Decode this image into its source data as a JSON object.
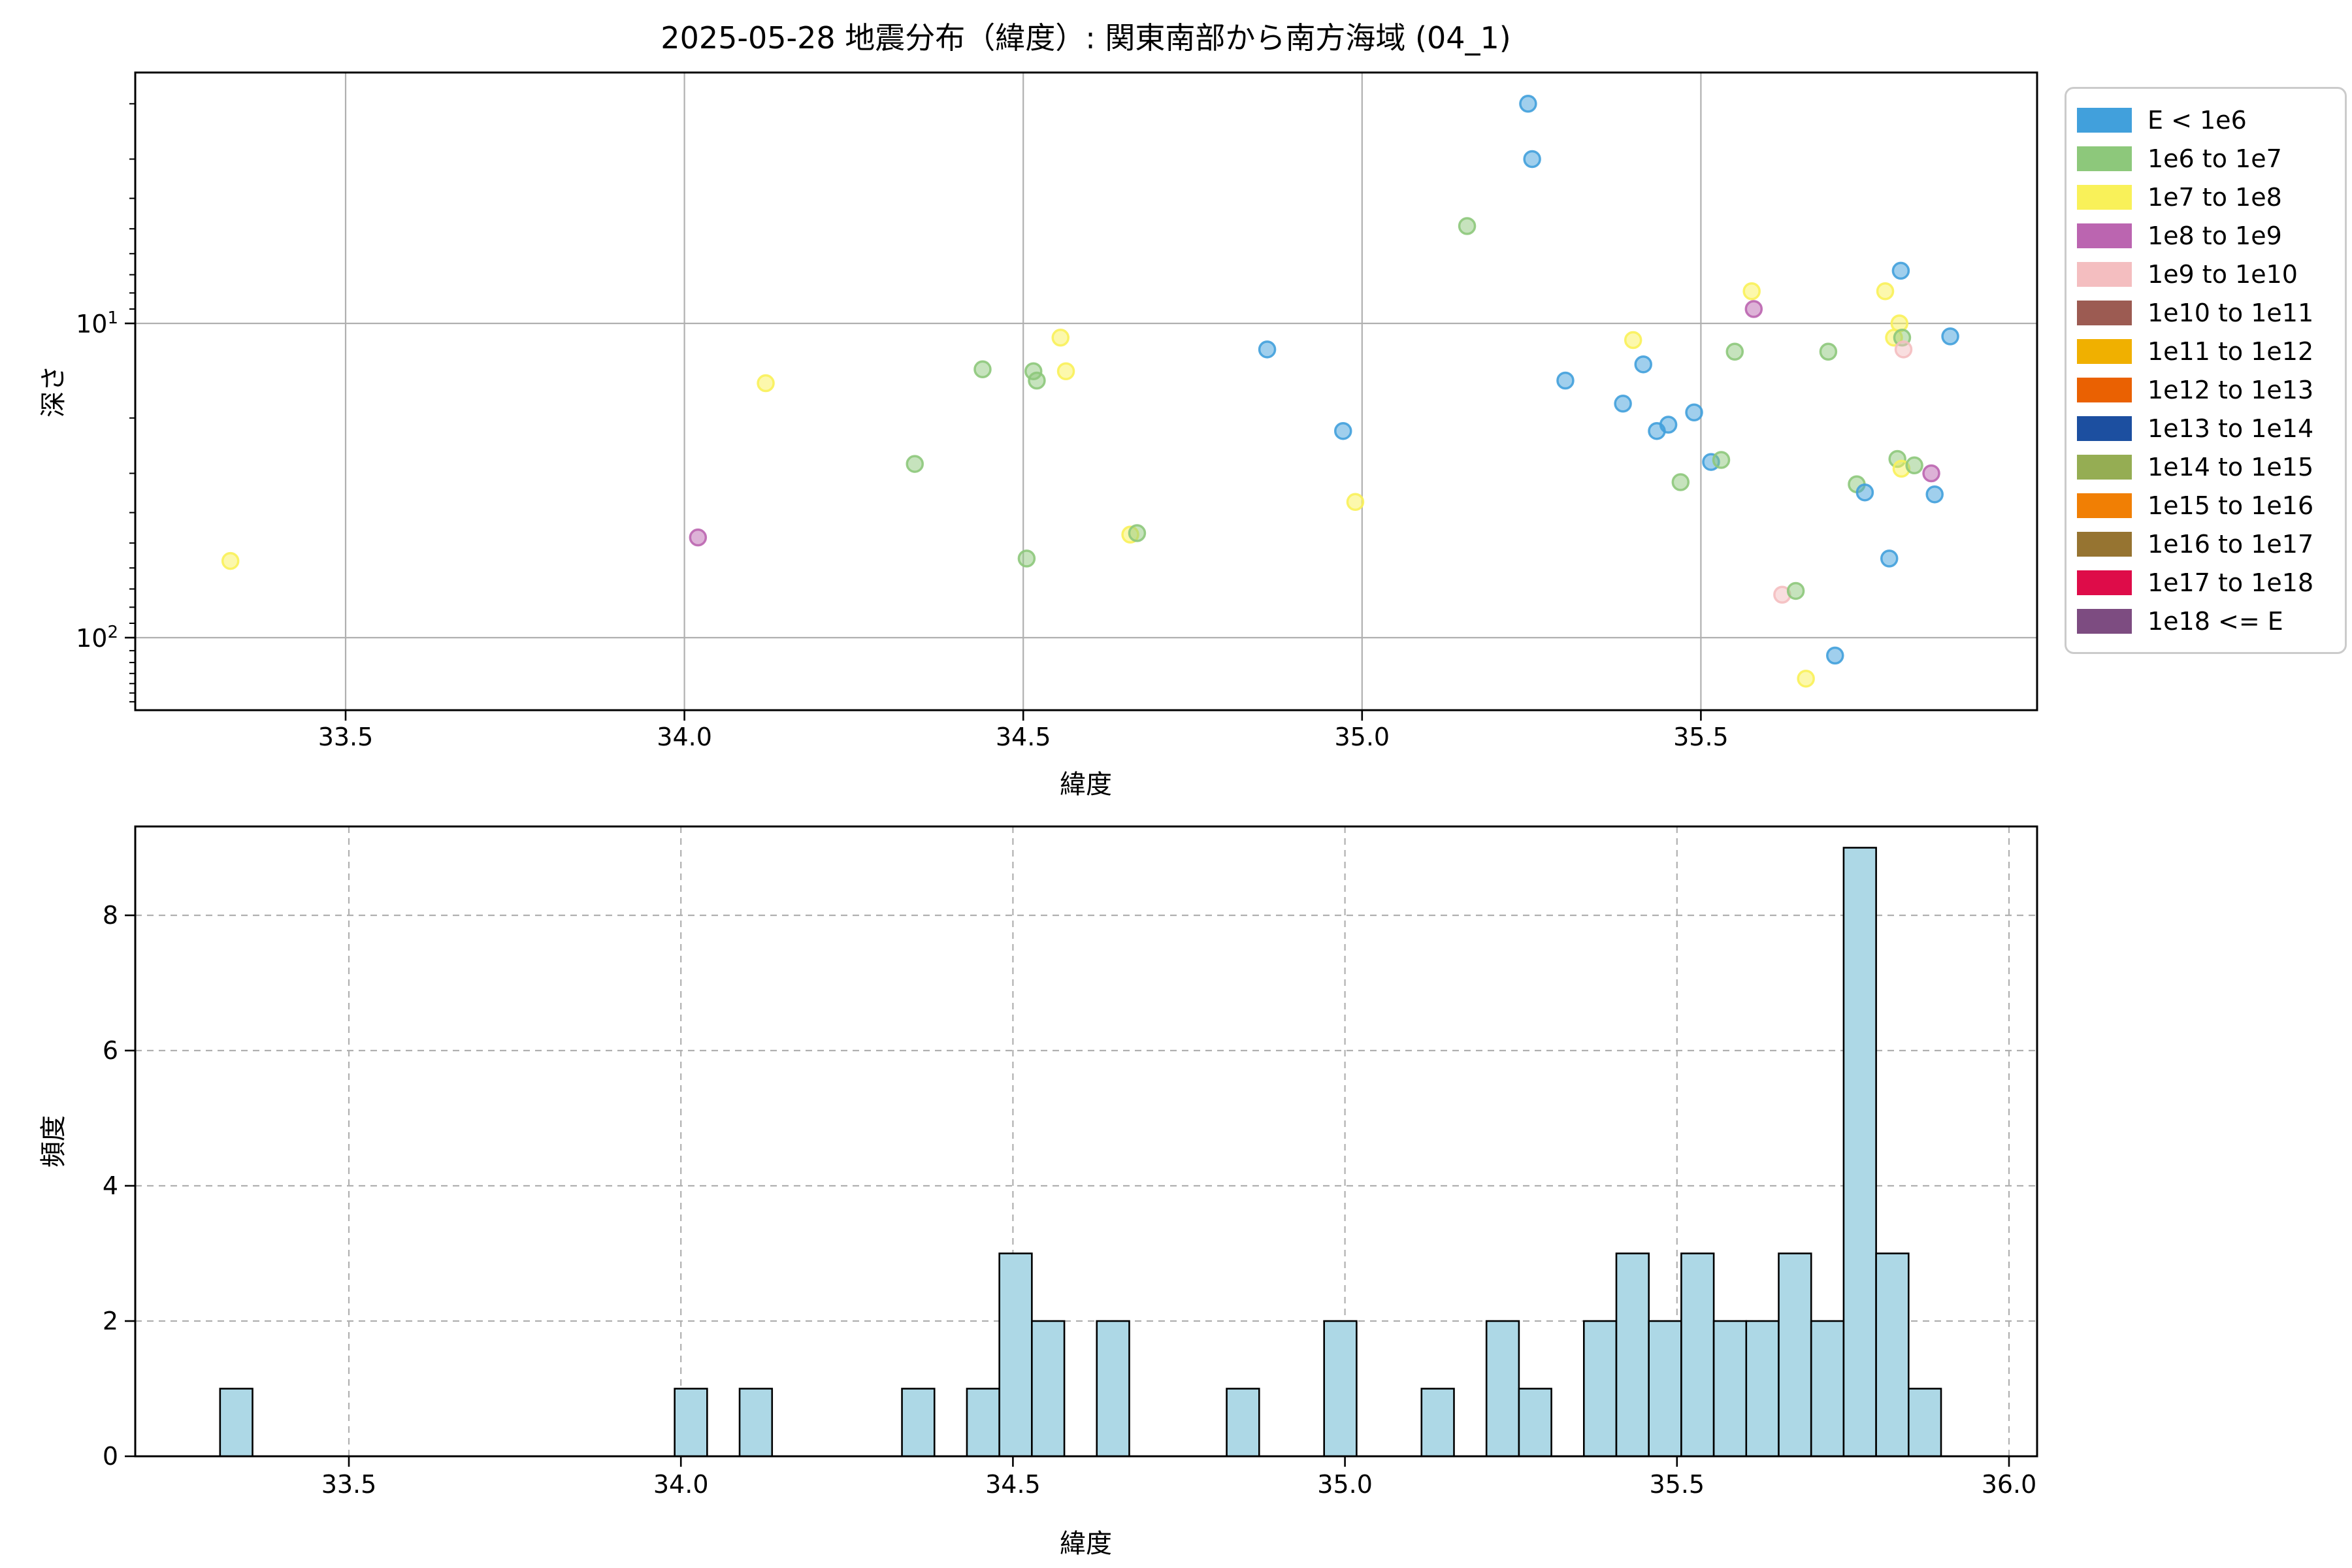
{
  "title": "2025-05-28 地震分布（緯度）: 関東南部から南方海域 (04_1)",
  "legend": {
    "entries": [
      {
        "label": "E < 1e6",
        "color": "#41A0DC"
      },
      {
        "label": "1e6 to 1e7",
        "color": "#8DC87B"
      },
      {
        "label": "1e7 to 1e8",
        "color": "#F9F159"
      },
      {
        "label": "1e8 to 1e9",
        "color": "#BB65B0"
      },
      {
        "label": "1e9 to 1e10",
        "color": "#F4BEC0"
      },
      {
        "label": "1e10 to 1e11",
        "color": "#9C5B52"
      },
      {
        "label": "1e11 to 1e12",
        "color": "#F0B000"
      },
      {
        "label": "1e12 to 1e13",
        "color": "#EA6102"
      },
      {
        "label": "1e13 to 1e14",
        "color": "#1C4FA0"
      },
      {
        "label": "1e14 to 1e15",
        "color": "#95AD53"
      },
      {
        "label": "1e15 to 1e16",
        "color": "#F17F04"
      },
      {
        "label": "1e16 to 1e17",
        "color": "#967431"
      },
      {
        "label": "1e17 to 1e18",
        "color": "#DE0C49"
      },
      {
        "label": "1e18 <= E",
        "color": "#7D4C81"
      }
    ]
  },
  "chart_data": [
    {
      "type": "scatter",
      "title": "2025-05-28 地震分布（緯度）: 関東南部から南方海域 (04_1)",
      "xlabel": "緯度",
      "ylabel": "深さ",
      "xlim": [
        33.19,
        36.0
      ],
      "ylim": [
        1.6,
        170
      ],
      "y_scale": "log",
      "y_inverted": true,
      "grid": "solid",
      "x_ticks": [
        {
          "label": "33.5",
          "value": 33.5
        },
        {
          "label": "34.0",
          "value": 34.0
        },
        {
          "label": "34.5",
          "value": 34.5
        },
        {
          "label": "35.0",
          "value": 35.0
        },
        {
          "label": "35.5",
          "value": 35.5
        }
      ],
      "y_ticks": [
        {
          "label": "10^1",
          "value": 10
        },
        {
          "label": "10^2",
          "value": 100
        }
      ],
      "point_format": "[latitude, depth_km, legend_category_index]",
      "points": [
        [
          33.33,
          57,
          2
        ],
        [
          34.02,
          48,
          3
        ],
        [
          34.12,
          15.5,
          2
        ],
        [
          34.34,
          28,
          1
        ],
        [
          34.44,
          14,
          1
        ],
        [
          34.505,
          56,
          1
        ],
        [
          34.515,
          14.2,
          1
        ],
        [
          34.52,
          15.2,
          1
        ],
        [
          34.555,
          11.1,
          2
        ],
        [
          34.563,
          14.2,
          2
        ],
        [
          34.658,
          47,
          2
        ],
        [
          34.668,
          46.5,
          1
        ],
        [
          34.86,
          12.1,
          0
        ],
        [
          34.972,
          22,
          0
        ],
        [
          34.99,
          37,
          2
        ],
        [
          35.155,
          4.9,
          1
        ],
        [
          35.245,
          2.0,
          0
        ],
        [
          35.251,
          3.0,
          0
        ],
        [
          35.3,
          15.2,
          0
        ],
        [
          35.385,
          18,
          0
        ],
        [
          35.4,
          11.3,
          2
        ],
        [
          35.415,
          13.5,
          0
        ],
        [
          35.435,
          22,
          0
        ],
        [
          35.452,
          21,
          0
        ],
        [
          35.47,
          32,
          1
        ],
        [
          35.49,
          19.2,
          0
        ],
        [
          35.515,
          27.6,
          0
        ],
        [
          35.53,
          27.2,
          1
        ],
        [
          35.55,
          12.3,
          1
        ],
        [
          35.575,
          7.9,
          2
        ],
        [
          35.578,
          9.0,
          3
        ],
        [
          35.62,
          73,
          4
        ],
        [
          35.64,
          71,
          1
        ],
        [
          35.655,
          135,
          2
        ],
        [
          35.688,
          12.3,
          1
        ],
        [
          35.698,
          114,
          0
        ],
        [
          35.73,
          32.5,
          1
        ],
        [
          35.742,
          34.5,
          0
        ],
        [
          35.772,
          7.9,
          2
        ],
        [
          35.778,
          56,
          0
        ],
        [
          35.795,
          6.8,
          0
        ],
        [
          35.79,
          27,
          1
        ],
        [
          35.796,
          29,
          2
        ],
        [
          35.793,
          10.0,
          2
        ],
        [
          35.785,
          11.1,
          2
        ],
        [
          35.797,
          11.1,
          1
        ],
        [
          35.799,
          12.1,
          4
        ],
        [
          35.815,
          28.3,
          1
        ],
        [
          35.84,
          30,
          3
        ],
        [
          35.845,
          35,
          0
        ],
        [
          35.868,
          11,
          0
        ]
      ]
    },
    {
      "type": "bar",
      "xlabel": "緯度",
      "ylabel": "頻度",
      "xlim": [
        33.18,
        36.04
      ],
      "ylim": [
        0,
        9.3
      ],
      "grid": "dashed",
      "x_ticks": [
        {
          "label": "33.5",
          "value": 33.5
        },
        {
          "label": "34.0",
          "value": 34.0
        },
        {
          "label": "34.5",
          "value": 34.5
        },
        {
          "label": "35.0",
          "value": 35.0
        },
        {
          "label": "35.5",
          "value": 35.5
        },
        {
          "label": "36.0",
          "value": 36.0
        }
      ],
      "y_ticks": [
        {
          "label": "0",
          "value": 0
        },
        {
          "label": "2",
          "value": 2
        },
        {
          "label": "4",
          "value": 4
        },
        {
          "label": "6",
          "value": 6
        },
        {
          "label": "8",
          "value": 8
        }
      ],
      "bin_start": 33.306,
      "bin_width": 0.0489,
      "counts": [
        1,
        0,
        0,
        0,
        0,
        0,
        0,
        0,
        0,
        0,
        0,
        0,
        0,
        0,
        1,
        0,
        1,
        0,
        0,
        0,
        0,
        1,
        0,
        1,
        3,
        2,
        0,
        2,
        0,
        0,
        0,
        1,
        0,
        0,
        2,
        0,
        0,
        1,
        0,
        2,
        1,
        0,
        2,
        3,
        2,
        3,
        2,
        2,
        3,
        2,
        9,
        3,
        1,
        0
      ],
      "bar_color": "#ADD8E6",
      "bar_edge_color": "#000000"
    }
  ],
  "style": {
    "grid_color": "#B0B0B0",
    "spine_color": "#000000",
    "background": "#FFFFFF"
  }
}
